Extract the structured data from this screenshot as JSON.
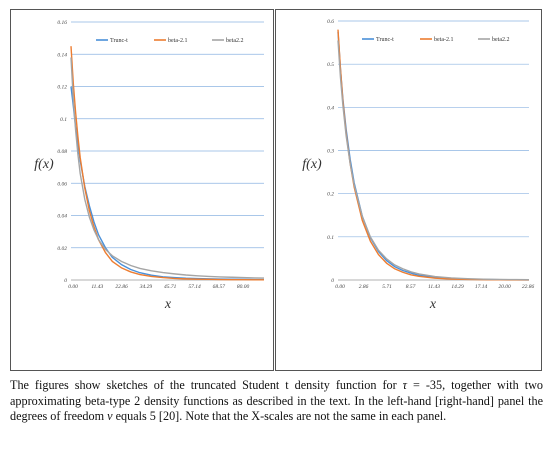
{
  "chart_data": [
    {
      "type": "line",
      "panel": "left",
      "ylabel": "f(x)",
      "xlabel": "x",
      "ylim": [
        0,
        0.16
      ],
      "xlim": [
        0,
        84
      ],
      "ytick_labels": [
        "0",
        "0.02",
        "0.04",
        "0.06",
        "0.08",
        "0.1",
        "0.12",
        "0.14",
        "0.16"
      ],
      "xtick_labels": [
        "0.00",
        "11.43",
        "22.86",
        "34.29",
        "45.71",
        "57.14",
        "68.57",
        "80.00"
      ],
      "grid": "horizontal",
      "legend": "top",
      "series": [
        {
          "name": "Trunc-t",
          "color": "#4a90d9",
          "x": [
            0,
            1,
            2,
            3,
            4,
            6,
            8,
            10,
            12,
            15,
            18,
            22,
            26,
            30,
            35,
            40,
            45,
            50,
            55,
            60,
            65,
            70,
            75,
            80,
            84
          ],
          "y": [
            0.12,
            0.108,
            0.095,
            0.084,
            0.074,
            0.058,
            0.046,
            0.036,
            0.028,
            0.02,
            0.014,
            0.0095,
            0.0065,
            0.0045,
            0.003,
            0.002,
            0.0015,
            0.0011,
            0.0009,
            0.0007,
            0.0006,
            0.0005,
            0.0004,
            0.0003,
            0.0003
          ]
        },
        {
          "name": "beta-2.1",
          "color": "#ed7d31",
          "x": [
            0,
            1,
            2,
            3,
            4,
            6,
            8,
            10,
            12,
            15,
            18,
            22,
            26,
            30,
            35,
            40,
            45,
            50,
            55,
            60,
            65,
            70,
            75,
            80,
            84
          ],
          "y": [
            0.145,
            0.122,
            0.104,
            0.089,
            0.076,
            0.057,
            0.043,
            0.033,
            0.025,
            0.017,
            0.0115,
            0.0075,
            0.005,
            0.0034,
            0.0022,
            0.0015,
            0.001,
            0.0007,
            0.0005,
            0.0004,
            0.0003,
            0.0002,
            0.0002,
            0.0001,
            0.0001
          ]
        },
        {
          "name": "beta2.2",
          "color": "#a5a5a5",
          "x": [
            0,
            1,
            2,
            3,
            4,
            6,
            8,
            10,
            12,
            15,
            18,
            22,
            26,
            30,
            35,
            40,
            45,
            50,
            55,
            60,
            65,
            70,
            75,
            80,
            84
          ],
          "y": [
            0.138,
            0.112,
            0.093,
            0.078,
            0.066,
            0.05,
            0.039,
            0.031,
            0.025,
            0.019,
            0.015,
            0.0115,
            0.009,
            0.0072,
            0.0057,
            0.0046,
            0.0038,
            0.0031,
            0.0026,
            0.0022,
            0.0019,
            0.0017,
            0.0015,
            0.0013,
            0.0012
          ]
        }
      ]
    },
    {
      "type": "line",
      "panel": "right",
      "ylabel": "f(x)",
      "xlabel": "x",
      "ylim": [
        0,
        0.6
      ],
      "xlim": [
        0,
        23.6
      ],
      "ytick_labels": [
        "0",
        "0.1",
        "0.2",
        "0.3",
        "0.4",
        "0.5",
        "0.6"
      ],
      "xtick_labels": [
        "0.00",
        "2.86",
        "5.71",
        "8.57",
        "11.43",
        "14.29",
        "17.14",
        "20.00",
        "22.86"
      ],
      "grid": "horizontal",
      "legend": "top",
      "series": [
        {
          "name": "Trunc-t",
          "color": "#4a90d9",
          "x": [
            0,
            0.3,
            0.6,
            1,
            1.5,
            2,
            3,
            4,
            5,
            6,
            7,
            8,
            9,
            10,
            12,
            14,
            16,
            18,
            20,
            22,
            23.6
          ],
          "y": [
            0.575,
            0.49,
            0.42,
            0.35,
            0.28,
            0.225,
            0.148,
            0.098,
            0.066,
            0.045,
            0.031,
            0.022,
            0.016,
            0.011,
            0.006,
            0.0035,
            0.002,
            0.0012,
            0.0008,
            0.0005,
            0.0003
          ]
        },
        {
          "name": "beta-2.1",
          "color": "#ed7d31",
          "x": [
            0,
            0.3,
            0.6,
            1,
            1.5,
            2,
            3,
            4,
            5,
            6,
            7,
            8,
            9,
            10,
            12,
            14,
            16,
            18,
            20,
            22,
            23.6
          ],
          "y": [
            0.58,
            0.49,
            0.415,
            0.34,
            0.27,
            0.215,
            0.138,
            0.09,
            0.059,
            0.039,
            0.026,
            0.018,
            0.012,
            0.0085,
            0.0042,
            0.0022,
            0.0012,
            0.0007,
            0.0004,
            0.0002,
            0.0001
          ]
        },
        {
          "name": "beta2.2",
          "color": "#a5a5a5",
          "x": [
            0,
            0.3,
            0.6,
            1,
            1.5,
            2,
            3,
            4,
            5,
            6,
            7,
            8,
            9,
            10,
            12,
            14,
            16,
            18,
            20,
            22,
            23.6
          ],
          "y": [
            0.555,
            0.47,
            0.405,
            0.335,
            0.27,
            0.22,
            0.147,
            0.1,
            0.069,
            0.049,
            0.035,
            0.026,
            0.019,
            0.014,
            0.008,
            0.0048,
            0.003,
            0.002,
            0.0013,
            0.0009,
            0.0007
          ]
        }
      ]
    }
  ],
  "caption": {
    "part1": "The figures show sketches of the truncated Student t density function for ",
    "tau_symbol": "τ",
    "tau_value": " = -35,",
    "part2": " together with two approximating beta-type 2 density functions as described in the text. In the left-hand [right-hand] panel the degrees of freedom ",
    "nu_symbol": "ν",
    "part3": " equals 5 [20]. Note that the X-scales are not the same in each panel."
  }
}
